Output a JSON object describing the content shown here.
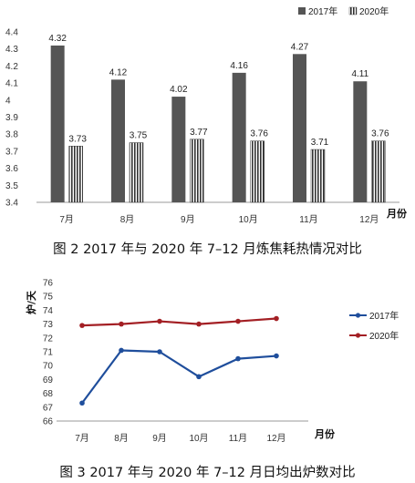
{
  "figure2": {
    "caption": "图 2   2017 年与 2020 年 7–12 月炼焦耗热情况对比",
    "chart_data": {
      "type": "bar",
      "categories": [
        "7月",
        "8月",
        "9月",
        "10月",
        "11月",
        "12月"
      ],
      "xlabel": "月份",
      "ylabel": "",
      "ylim": [
        3.4,
        4.4
      ],
      "yticks": [
        "3.4",
        "3.5",
        "3.6",
        "3.7",
        "3.8",
        "3.9",
        "4",
        "4.1",
        "4.2",
        "4.3",
        "4.4"
      ],
      "legend_position": "top-right",
      "series": [
        {
          "name": "2017年",
          "values": [
            4.32,
            4.12,
            4.02,
            4.16,
            4.27,
            4.11
          ],
          "labels": [
            "4.32",
            "4.12",
            "4.02",
            "4.16",
            "4.27",
            "4.11"
          ],
          "color": "#555555",
          "style": "solid"
        },
        {
          "name": "2020年",
          "values": [
            3.73,
            3.75,
            3.77,
            3.76,
            3.71,
            3.76
          ],
          "labels": [
            "3.73",
            "3.75",
            "3.77",
            "3.76",
            "3.71",
            "3.76"
          ],
          "color": "#333333",
          "style": "striped"
        }
      ]
    }
  },
  "figure3": {
    "caption": "图 3   2017 年与 2020 年 7–12 月日均出炉数对比",
    "chart_data": {
      "type": "line",
      "categories": [
        "7月",
        "8月",
        "9月",
        "10月",
        "11月",
        "12月"
      ],
      "xlabel": "月份",
      "ylabel": "炉/天",
      "ylim": [
        66,
        76
      ],
      "yticks": [
        "66",
        "67",
        "68",
        "69",
        "70",
        "71",
        "72",
        "73",
        "74",
        "75",
        "76"
      ],
      "legend_position": "right",
      "series": [
        {
          "name": "2017年",
          "values": [
            67.3,
            71.1,
            71.0,
            69.2,
            70.5,
            70.7
          ],
          "color": "#1f4e9c"
        },
        {
          "name": "2020年",
          "values": [
            72.9,
            73.0,
            73.2,
            73.0,
            73.2,
            73.4
          ],
          "color": "#a31f24"
        }
      ]
    }
  }
}
